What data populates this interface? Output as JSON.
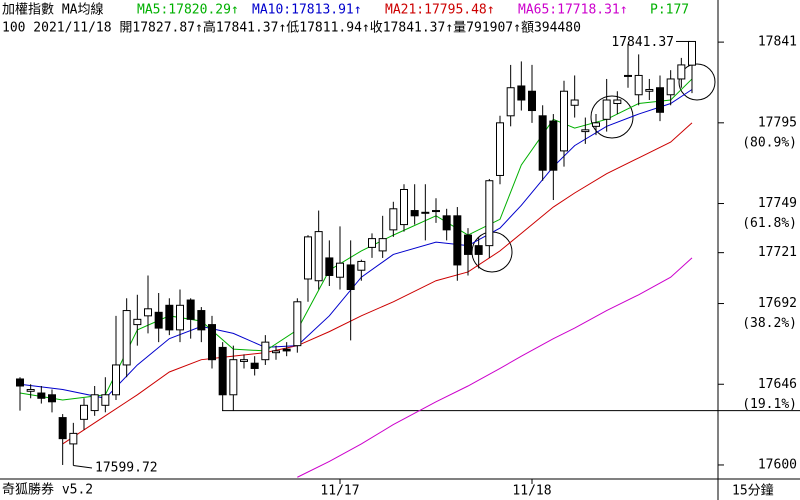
{
  "header": {
    "row1": [
      {
        "text": "加權指數 MA均線",
        "color": "#000000"
      },
      {
        "text": "MA5:17820.29↑",
        "color": "#00b000"
      },
      {
        "text": "MA10:17813.91↑",
        "color": "#0000cc"
      },
      {
        "text": "MA21:17795.48↑",
        "color": "#cc0000"
      },
      {
        "text": "MA65:17718.31↑",
        "color": "#cc00cc"
      },
      {
        "text": "P:177",
        "color": "#00b000"
      }
    ],
    "row2": "100 2021/11/18 開17827.87↑高17841.37↑低17811.94↑收17841.37↑量791907↑額394480"
  },
  "chart_data": {
    "type": "candlestick",
    "categories": [
      null,
      null,
      null,
      null,
      null,
      null,
      null,
      null,
      null,
      null,
      null,
      null,
      null,
      null,
      null,
      null,
      null,
      null,
      null,
      null,
      null,
      null,
      null,
      null,
      null,
      null,
      null,
      null,
      null,
      null,
      "11/17",
      null,
      null,
      null,
      null,
      null,
      null,
      null,
      null,
      null,
      null,
      null,
      null,
      null,
      null,
      null,
      null,
      null,
      "11/18",
      null,
      null,
      null,
      null,
      null,
      null,
      null,
      null,
      null,
      null,
      null,
      null,
      null,
      null,
      null
    ],
    "open": [
      17649,
      17642,
      17641,
      17640,
      17627,
      17612,
      17626,
      17631,
      17634,
      17640,
      17657,
      17680,
      17685,
      17687,
      17691,
      17677,
      17694,
      17688,
      17680,
      17667,
      17640,
      17659,
      17658,
      17660,
      17664,
      17666,
      17668,
      17706,
      17705,
      17718,
      17707,
      17714,
      17711,
      17724,
      17722,
      17734,
      17737,
      17745,
      17744,
      17745,
      17742,
      17742,
      17731,
      17725,
      17725,
      17765,
      17799,
      17816,
      17813,
      17799,
      17796,
      17779,
      17805,
      17790,
      17793,
      17797,
      17806,
      17822,
      17811,
      17813,
      17815,
      17811,
      17820,
      17827.87
    ],
    "high": [
      17650,
      17646,
      17645,
      17643,
      17629,
      17624,
      17638,
      17645,
      17650,
      17685,
      17695,
      17697,
      17708,
      17698,
      17695,
      17700,
      17695,
      17690,
      17685,
      17670,
      17668,
      17663,
      17662,
      17674,
      17668,
      17670,
      17695,
      17731,
      17745,
      17728,
      17736,
      17728,
      17717,
      17732,
      17742,
      17750,
      17760,
      17760,
      17760,
      17752,
      17746,
      17747,
      17735,
      17730,
      17763,
      17799,
      17828,
      17830,
      17828,
      17805,
      17800,
      17819,
      17822,
      17798,
      17800,
      17820,
      17813,
      17840,
      17834,
      17820,
      17822,
      17825,
      17832,
      17841.37
    ],
    "low": [
      17631,
      17638,
      17635,
      17630,
      17600,
      17599.72,
      17620,
      17628,
      17630,
      17637,
      17650,
      17668,
      17675,
      17670,
      17674,
      17670,
      17672,
      17670,
      17655,
      17631,
      17631,
      17655,
      17651,
      17657,
      17660,
      17662,
      17664,
      17693,
      17700,
      17702,
      17700,
      17671,
      17705,
      17718,
      17718,
      17730,
      17733,
      17737,
      17728,
      17738,
      17728,
      17705,
      17708,
      17712,
      17718,
      17760,
      17793,
      17802,
      17795,
      17762,
      17751,
      17770,
      17798,
      17783,
      17788,
      17790,
      17800,
      17815,
      17805,
      17808,
      17796,
      17805,
      17815,
      17811.94
    ],
    "close": [
      17645,
      17643,
      17638,
      17636,
      17615,
      17618,
      17634,
      17640,
      17640,
      17657,
      17688,
      17683,
      17689,
      17678,
      17677,
      17691,
      17683,
      17677,
      17660,
      17640,
      17660,
      17660,
      17655,
      17670,
      17665,
      17665,
      17693,
      17730,
      17733,
      17708,
      17715,
      17700,
      17716,
      17729,
      17729,
      17746,
      17757,
      17742,
      17744,
      17745,
      17734,
      17714,
      17720,
      17720,
      17762,
      17795,
      17815,
      17808,
      17802,
      17768,
      17768,
      17813,
      17808,
      17791,
      17795,
      17808,
      17808,
      17822,
      17822,
      17814,
      17801,
      17820,
      17828,
      17841.37
    ],
    "lines": [
      {
        "color": "#cc00cc",
        "x": [
          26,
          29,
          32,
          35,
          39,
          42,
          45,
          47,
          50,
          52,
          55,
          58,
          61,
          63
        ],
        "values": [
          17593,
          17602,
          17612,
          17623,
          17636,
          17645,
          17655,
          17662,
          17672,
          17678,
          17688,
          17697,
          17707,
          17718
        ]
      },
      {
        "color": "#cc0000",
        "x": [
          4,
          8,
          11,
          14,
          17,
          20,
          23,
          26,
          29,
          32,
          35,
          39,
          42,
          45,
          47,
          50,
          52,
          55,
          58,
          61,
          63
        ],
        "values": [
          17612,
          17628,
          17640,
          17653,
          17660,
          17662,
          17664,
          17668,
          17676,
          17685,
          17693,
          17705,
          17710,
          17722,
          17732,
          17747,
          17755,
          17766,
          17775,
          17784,
          17795
        ]
      },
      {
        "color": "#0000cc",
        "x": [
          0,
          4,
          8,
          11,
          14,
          17,
          20,
          23,
          26,
          29,
          32,
          35,
          39,
          42,
          45,
          47,
          50,
          52,
          55,
          58,
          61,
          63
        ],
        "values": [
          17646,
          17643,
          17638,
          17657,
          17672,
          17679,
          17675,
          17667,
          17668,
          17685,
          17707,
          17720,
          17727,
          17725,
          17735,
          17748,
          17770,
          17782,
          17793,
          17800,
          17806,
          17814
        ]
      },
      {
        "color": "#00b000",
        "x": [
          0,
          4,
          8,
          11,
          14,
          17,
          20,
          23,
          26,
          29,
          32,
          35,
          39,
          42,
          45,
          47,
          50,
          52,
          55,
          58,
          61,
          63
        ],
        "values": [
          17641,
          17637,
          17640,
          17677,
          17685,
          17682,
          17666,
          17665,
          17677,
          17711,
          17722,
          17731,
          17742,
          17731,
          17740,
          17771,
          17797,
          17792,
          17797,
          17806,
          17808,
          17820
        ]
      }
    ],
    "ylim": [
      17592,
      17865
    ],
    "yticks": [
      17841,
      17795,
      17749,
      17721,
      17692,
      17646,
      17600
    ],
    "fib_labels": [
      null,
      "(80.9%)",
      "(61.8%)",
      null,
      "(38.2%)",
      "(19.1%)",
      null
    ],
    "hline": 17631,
    "annotations": [
      "17841.37",
      "17599.72"
    ]
  },
  "footer": {
    "left": "奇狐勝券 v5.2",
    "right": "15分鐘"
  }
}
